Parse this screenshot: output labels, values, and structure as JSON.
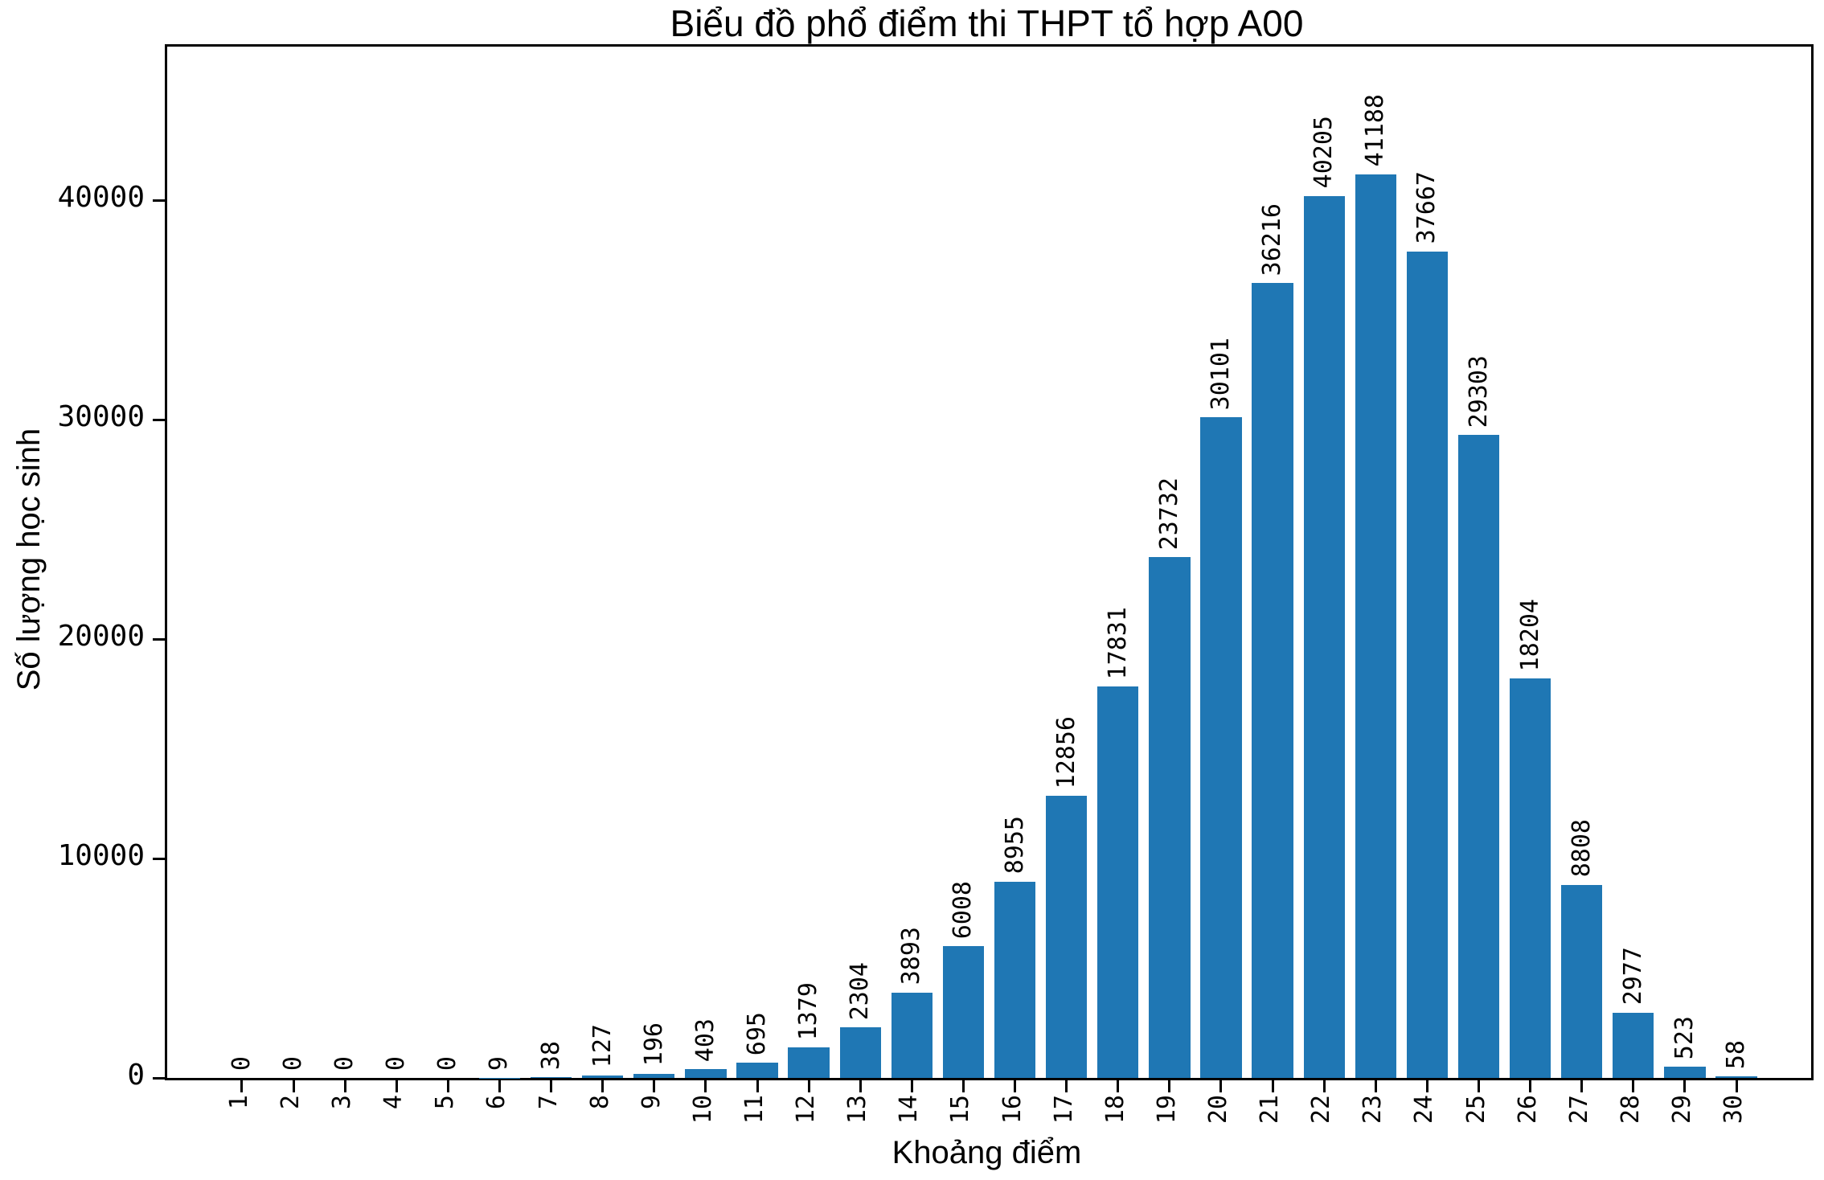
{
  "title": "Biểu đồ phổ điểm thi THPT tổ hợp A00",
  "chart_data": {
    "type": "bar",
    "title": "Biểu đồ phổ điểm thi THPT tổ hợp A00",
    "xlabel": "Khoảng điểm",
    "ylabel": "Số lượng học sinh",
    "categories": [
      "1",
      "2",
      "3",
      "4",
      "5",
      "6",
      "7",
      "8",
      "9",
      "10",
      "11",
      "12",
      "13",
      "14",
      "15",
      "16",
      "17",
      "18",
      "19",
      "20",
      "21",
      "22",
      "23",
      "24",
      "25",
      "26",
      "27",
      "28",
      "29",
      "30"
    ],
    "values": [
      0,
      0,
      0,
      0,
      0,
      9,
      38,
      127,
      196,
      403,
      695,
      1379,
      2304,
      3893,
      6008,
      8955,
      12856,
      17831,
      23732,
      30101,
      36216,
      40205,
      41188,
      37667,
      29303,
      18204,
      8808,
      2977,
      523,
      58
    ],
    "bar_labels_shown": true,
    "bar_color": "#1f77b4",
    "text_color": "#000000",
    "background_color": "#ffffff",
    "ylim": [
      0,
      47000
    ],
    "yticks": [
      0,
      10000,
      20000,
      30000,
      40000
    ],
    "ytick_labels": [
      "0",
      "10000",
      "20000",
      "30000",
      "40000"
    ],
    "xtick_rotation_deg": 90,
    "bar_label_rotation_deg": 90,
    "grid": false,
    "legend": null
  }
}
